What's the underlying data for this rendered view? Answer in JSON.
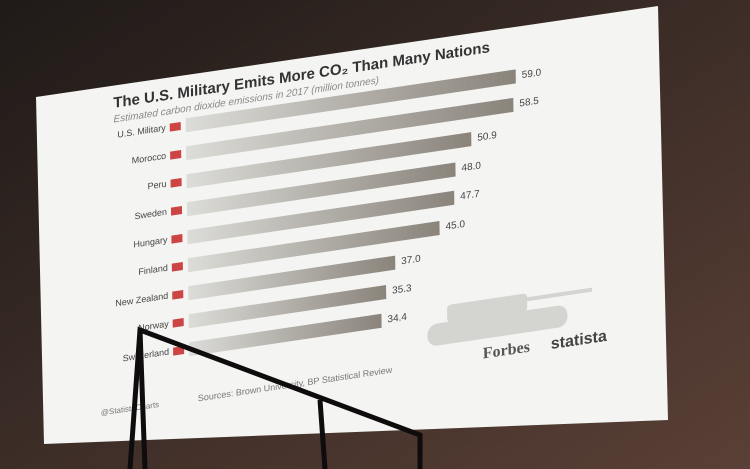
{
  "chart_data": {
    "type": "bar",
    "title": "The U.S. Military Emits More CO₂ Than Many Nations",
    "subtitle": "Estimated carbon dioxide emissions in 2017 (million tonnes)",
    "categories": [
      "U.S. Military",
      "Morocco",
      "Peru",
      "Sweden",
      "Hungary",
      "Finland",
      "New Zealand",
      "Norway",
      "Switzerland"
    ],
    "values": [
      59.0,
      58.5,
      50.9,
      48.0,
      47.7,
      45.0,
      37.0,
      35.3,
      34.4
    ],
    "value_labels": [
      "59.0",
      "58.5",
      "50.9",
      "48.0",
      "47.7",
      "45.0",
      "37.0",
      "35.3",
      "34.4"
    ],
    "color": "#8f8a82",
    "source": "Sources: Brown University, BP Statistical Review",
    "handle": "@StatistaCharts",
    "brands": [
      "Forbes",
      "statista"
    ]
  }
}
